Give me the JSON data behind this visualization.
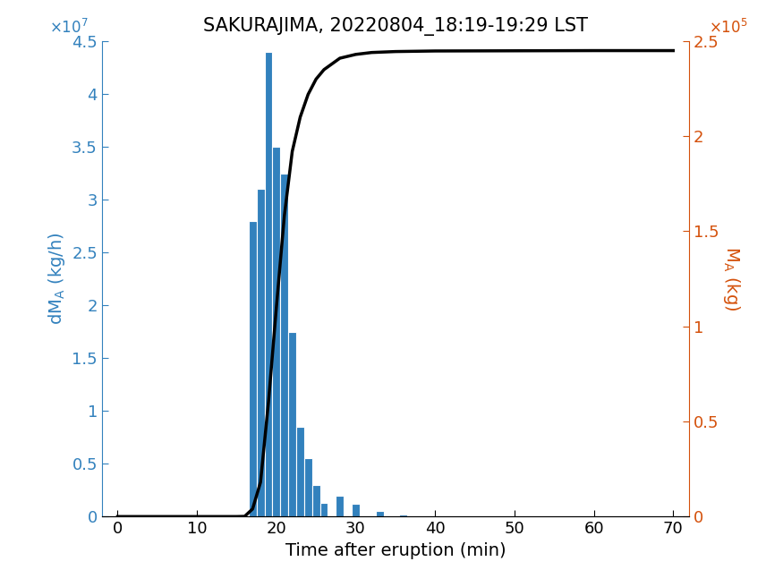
{
  "title": "SAKURAJIMA, 20220804_18:19-19:29 LST",
  "xlabel": "Time after eruption (min)",
  "ylabel_left": "dM_A (kg/h)",
  "ylabel_right": "M_A (kg)",
  "xlim": [
    -2,
    72
  ],
  "ylim_left": [
    0,
    45000000.0
  ],
  "ylim_right": [
    0,
    250000.0
  ],
  "xticks": [
    0,
    10,
    20,
    30,
    40,
    50,
    60,
    70
  ],
  "yticks_left": [
    0,
    5000000.0,
    10000000.0,
    15000000.0,
    20000000.0,
    25000000.0,
    30000000.0,
    35000000.0,
    40000000.0,
    45000000.0
  ],
  "yticks_right": [
    0,
    50000.0,
    100000.0,
    150000.0,
    200000.0,
    250000.0
  ],
  "ytick_labels_left": [
    "0",
    "0.5",
    "1",
    "1.5",
    "2",
    "2.5",
    "3",
    "3.5",
    "4",
    "4.5"
  ],
  "ytick_labels_right": [
    "0",
    "0.5",
    "1",
    "1.5",
    "2",
    "2.5"
  ],
  "bar_centers": [
    17,
    18,
    19,
    20,
    21,
    22,
    23,
    24,
    25,
    26,
    27,
    28,
    30,
    33,
    36,
    38,
    40
  ],
  "bar_heights": [
    28000000.0,
    31000000.0,
    44000000.0,
    35000000.0,
    32500000.0,
    17500000.0,
    8500000.0,
    5500000.0,
    3000000.0,
    1300000.0,
    0.0,
    2000000.0,
    1200000.0,
    500000.0,
    200000.0,
    0.0,
    0.0
  ],
  "bar_width": 1.0,
  "bar_color": "#3281bd",
  "line_color": "#000000",
  "line_width": 2.5,
  "left_axis_color": "#3281bd",
  "right_axis_color": "#d4500a",
  "title_fontsize": 15,
  "label_fontsize": 14,
  "tick_fontsize": 13,
  "cumulative_x": [
    0,
    10,
    15,
    16,
    17,
    18,
    19,
    20,
    21,
    22,
    23,
    24,
    25,
    26,
    27,
    28,
    29,
    30,
    32,
    35,
    40,
    50,
    60,
    70
  ],
  "cumulative_y": [
    0,
    0,
    0,
    100.0,
    4000.0,
    18000.0,
    60000.0,
    110000.0,
    158000.0,
    192000.0,
    210000.0,
    222000.0,
    230000.0,
    235000.0,
    238000.0,
    241000.0,
    242000.0,
    243000.0,
    244000.0,
    244500.0,
    244800.0,
    244900.0,
    245000.0,
    245000.0
  ]
}
